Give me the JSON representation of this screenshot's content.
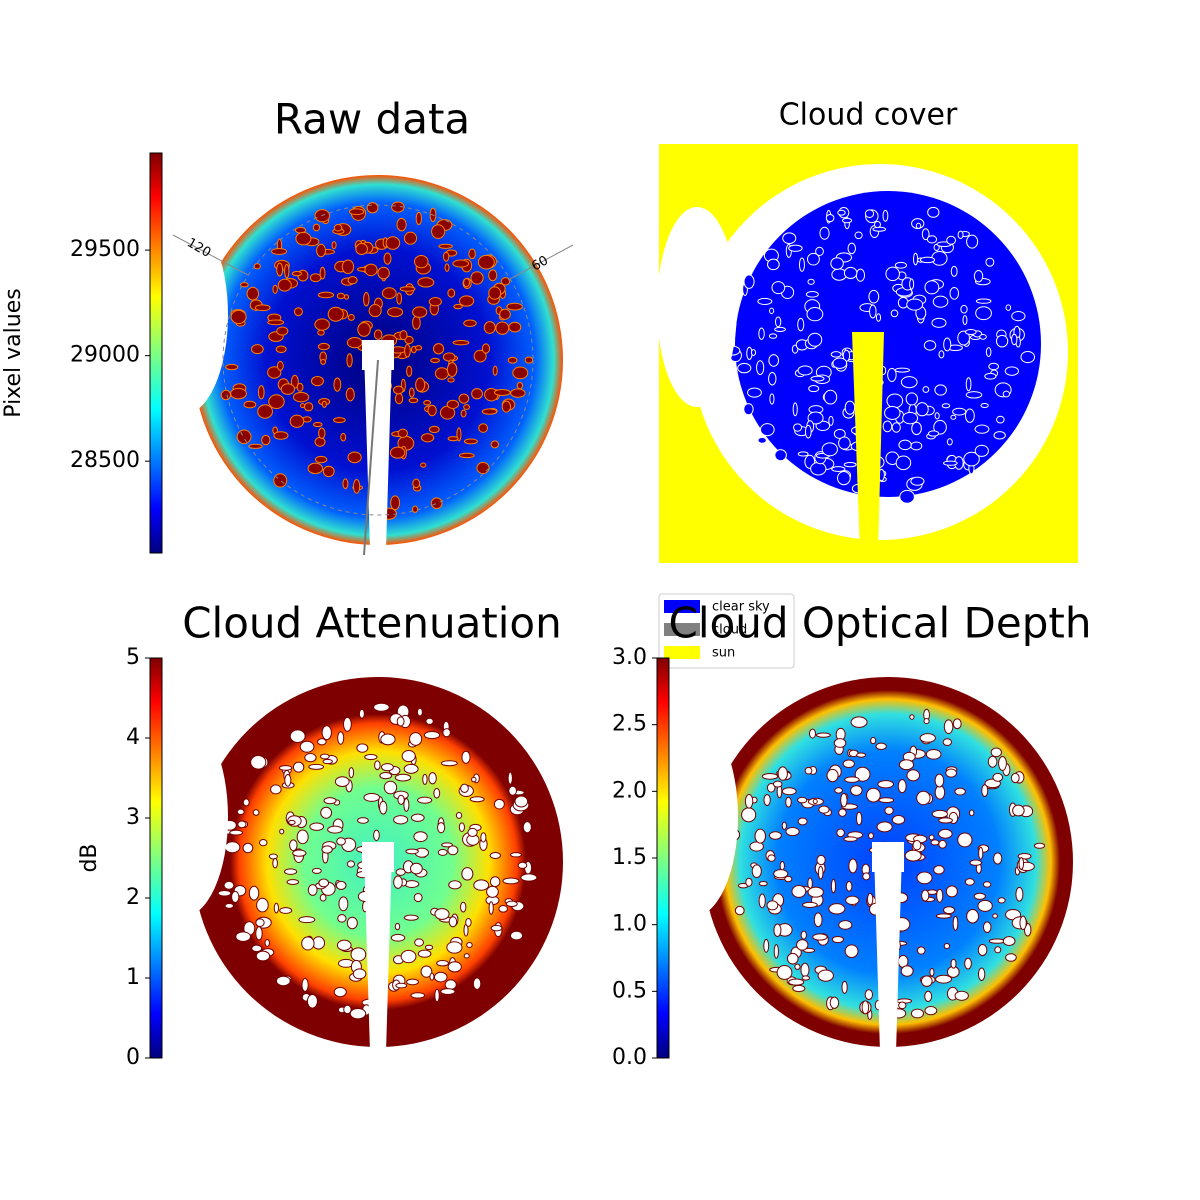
{
  "chart_data": [
    {
      "type": "image",
      "title": "Raw data",
      "colormap": "jet",
      "polar_labels": [
        "120",
        "60"
      ],
      "colorbar": {
        "label": "Pixel values",
        "ylim": [
          28065,
          29960
        ],
        "yticks": [
          28500,
          29000,
          29500
        ]
      }
    },
    {
      "type": "categorical-image",
      "title": "Cloud cover",
      "legend": [
        {
          "name": "clear sky",
          "color": "#0000ff"
        },
        {
          "name": "cloud",
          "color": "#808080"
        },
        {
          "name": "sun",
          "color": "#ffff00"
        }
      ]
    },
    {
      "type": "image",
      "title": "Cloud Attenuation",
      "colormap": "jet",
      "colorbar": {
        "label": "dB",
        "ylim": [
          0,
          5
        ],
        "yticks": [
          0,
          1,
          2,
          3,
          4,
          5
        ]
      }
    },
    {
      "type": "image",
      "title": "Cloud Optical Depth",
      "colormap": "jet",
      "colorbar": {
        "ylim": [
          0,
          3
        ],
        "yticks": [
          {
            "value": 0,
            "label": "0.0"
          },
          0.5,
          {
            "value": 1,
            "label": "1.0"
          },
          1.5,
          {
            "value": 2,
            "label": "2.0"
          },
          2.5,
          {
            "value": 3,
            "label": "3.0"
          }
        ]
      }
    }
  ]
}
